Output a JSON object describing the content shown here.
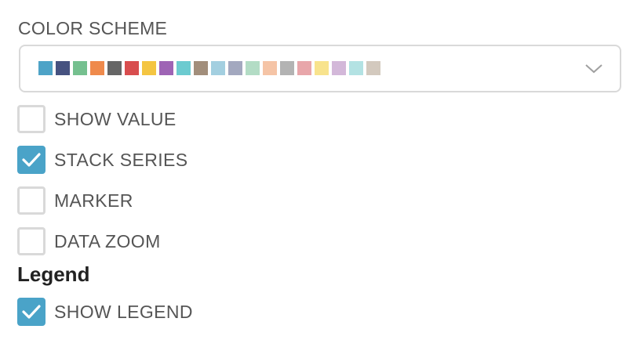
{
  "color_scheme": {
    "label": "COLOR SCHEME",
    "swatches": [
      "#4ea3c7",
      "#465280",
      "#75c08f",
      "#ef8a4c",
      "#666666",
      "#d84d4e",
      "#f4c542",
      "#9e64b5",
      "#6ccbd0",
      "#a28e7b",
      "#a3cfe0",
      "#a3a8bf",
      "#b3dcc5",
      "#f5c4a6",
      "#b3b3b3",
      "#e8a6aa",
      "#f8e38d",
      "#d3b8d9",
      "#b3e2e3",
      "#d3c9be"
    ],
    "dropdown_icon": "chevron-down-icon"
  },
  "options": {
    "show_value": {
      "label": "SHOW VALUE",
      "checked": false
    },
    "stack_series": {
      "label": "STACK SERIES",
      "checked": true
    },
    "marker": {
      "label": "MARKER",
      "checked": false
    },
    "data_zoom": {
      "label": "DATA ZOOM",
      "checked": false
    }
  },
  "legend": {
    "heading": "Legend",
    "show_legend": {
      "label": "SHOW LEGEND",
      "checked": true
    }
  },
  "colors": {
    "accent": "#4aa3c8",
    "border": "#d9d9d9",
    "text": "#555555",
    "heading": "#222222"
  }
}
